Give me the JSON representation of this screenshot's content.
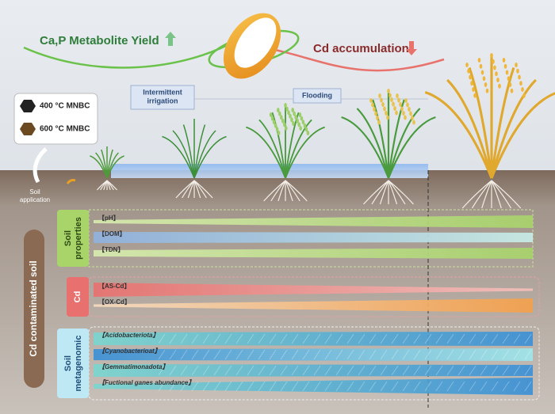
{
  "header": {
    "left": "Ca,P Metabolite Yield",
    "right": "Cd accumulation"
  },
  "materials": [
    "400 °C MNBC",
    "600 °C MNBC"
  ],
  "application": "Soil application",
  "stages": [
    "Intermittent irrigation",
    "Flooding"
  ],
  "side_label": "Cd contaminated soil",
  "groups": [
    {
      "label": "Soil properties",
      "items": [
        "【pH】",
        "【DOM】",
        "【TDN】"
      ]
    },
    {
      "label": "Cd",
      "items": [
        "【AS-Cd】",
        "【OX-Cd】"
      ]
    },
    {
      "label": "Soil metagenomic",
      "items": [
        "【Acidobacteriota】",
        "【Cyanobacterioat】",
        "【Gemmatimonadota】",
        "【Fuctional ganes abundance】"
      ]
    }
  ]
}
